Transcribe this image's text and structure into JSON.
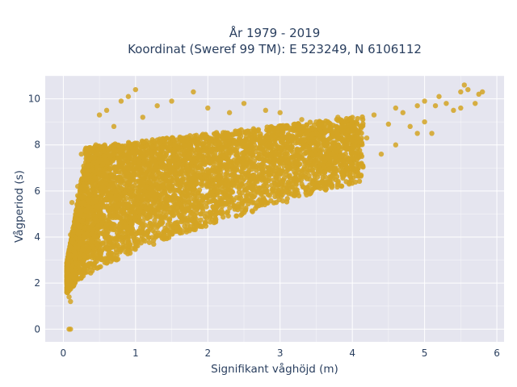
{
  "chart_data": {
    "type": "scatter",
    "title_line1": "År 1979 - 2019",
    "title_line2": "Koordinat (Sweref 99 TM): E 523249, N 6106112",
    "xlabel": "Signifikant våghöjd (m)",
    "ylabel": "Vågperiod (s)",
    "xlim": [
      -0.25,
      6.1
    ],
    "ylim": [
      -0.55,
      11.0
    ],
    "x_ticks": [
      0,
      1,
      2,
      3,
      4,
      5,
      6
    ],
    "y_ticks": [
      0,
      2,
      4,
      6,
      8,
      10
    ],
    "grid": true,
    "marker_color": "#d4a423",
    "background_color": "#e5e5ef",
    "series": [
      {
        "points": [
          [
            0.08,
            0.0
          ],
          [
            0.1,
            0.0
          ],
          [
            0.05,
            1.6
          ],
          [
            0.06,
            2.0
          ],
          [
            0.08,
            1.4
          ],
          [
            0.1,
            1.2
          ],
          [
            0.1,
            2.3
          ],
          [
            0.1,
            4.1
          ],
          [
            0.08,
            3.2
          ],
          [
            0.12,
            5.5
          ],
          [
            0.15,
            2.4
          ],
          [
            0.2,
            5.8
          ],
          [
            0.25,
            7.6
          ],
          [
            0.2,
            6.2
          ],
          [
            0.3,
            2.7
          ],
          [
            0.3,
            4.4
          ],
          [
            0.3,
            6.7
          ],
          [
            0.35,
            7.1
          ],
          [
            0.4,
            3.1
          ],
          [
            0.45,
            8.0
          ],
          [
            0.5,
            9.3
          ],
          [
            0.5,
            5.0
          ],
          [
            0.5,
            3.4
          ],
          [
            0.6,
            9.5
          ],
          [
            0.6,
            6.5
          ],
          [
            0.7,
            3.6
          ],
          [
            0.7,
            8.8
          ],
          [
            0.8,
            9.9
          ],
          [
            0.8,
            4.0
          ],
          [
            0.85,
            7.4
          ],
          [
            0.9,
            10.1
          ],
          [
            1.0,
            10.4
          ],
          [
            1.0,
            3.7
          ],
          [
            1.0,
            6.0
          ],
          [
            1.1,
            9.2
          ],
          [
            1.2,
            4.6
          ],
          [
            1.2,
            8.1
          ],
          [
            1.3,
            9.7
          ],
          [
            1.5,
            9.9
          ],
          [
            1.5,
            5.0
          ],
          [
            1.6,
            7.2
          ],
          [
            1.8,
            10.3
          ],
          [
            1.8,
            5.4
          ],
          [
            2.0,
            9.6
          ],
          [
            2.0,
            5.8
          ],
          [
            2.1,
            7.6
          ],
          [
            2.3,
            9.4
          ],
          [
            2.4,
            6.2
          ],
          [
            2.5,
            9.8
          ],
          [
            2.6,
            8.4
          ],
          [
            2.8,
            6.4
          ],
          [
            2.8,
            9.5
          ],
          [
            3.0,
            9.4
          ],
          [
            3.0,
            6.8
          ],
          [
            3.1,
            8.0
          ],
          [
            3.3,
            9.1
          ],
          [
            3.3,
            6.6
          ],
          [
            3.5,
            9.0
          ],
          [
            3.5,
            7.0
          ],
          [
            3.6,
            8.1
          ],
          [
            3.8,
            9.2
          ],
          [
            3.8,
            7.3
          ],
          [
            4.0,
            9.0
          ],
          [
            4.0,
            7.4
          ],
          [
            4.2,
            8.3
          ],
          [
            4.3,
            9.3
          ],
          [
            4.4,
            7.6
          ],
          [
            4.5,
            8.9
          ],
          [
            4.6,
            9.6
          ],
          [
            4.6,
            8.0
          ],
          [
            4.7,
            9.4
          ],
          [
            4.8,
            8.8
          ],
          [
            4.9,
            9.7
          ],
          [
            4.9,
            8.5
          ],
          [
            5.0,
            9.9
          ],
          [
            5.0,
            9.0
          ],
          [
            5.1,
            8.5
          ],
          [
            5.15,
            9.7
          ],
          [
            5.2,
            10.1
          ],
          [
            5.3,
            9.8
          ],
          [
            5.4,
            9.5
          ],
          [
            5.5,
            10.3
          ],
          [
            5.5,
            9.6
          ],
          [
            5.55,
            10.6
          ],
          [
            5.6,
            10.4
          ],
          [
            5.7,
            9.8
          ],
          [
            5.75,
            10.2
          ],
          [
            5.8,
            10.3
          ]
        ]
      }
    ]
  }
}
